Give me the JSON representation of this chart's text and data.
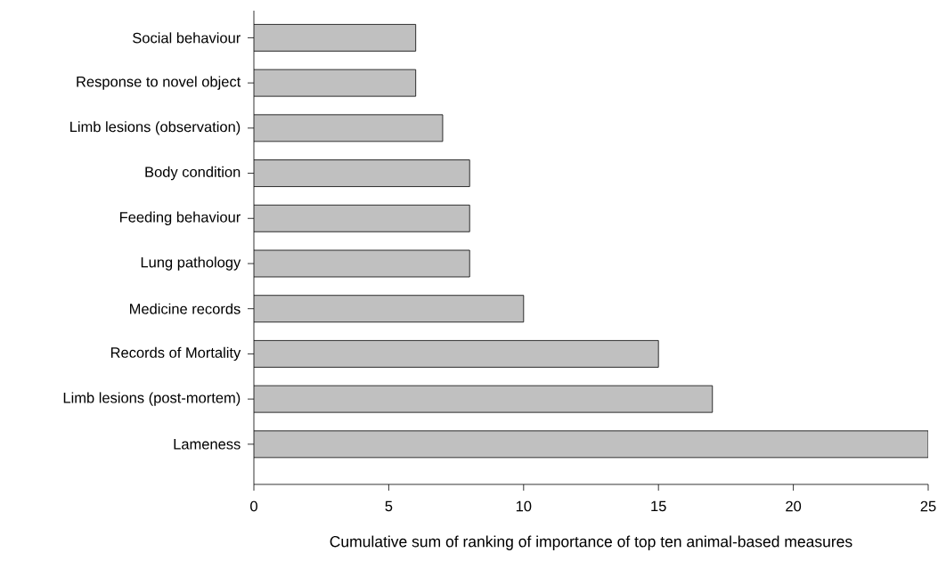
{
  "chart_data": {
    "type": "bar",
    "orientation": "horizontal",
    "xlabel": "Cumulative sum of ranking of importance of top ten animal-based measures",
    "categories": [
      "Social behaviour",
      "Response to novel object",
      "Limb lesions (observation)",
      "Body condition",
      "Feeding behaviour",
      "Lung pathology",
      "Medicine records",
      "Records of Mortality",
      "Limb lesions (post-mortem)",
      "Lameness"
    ],
    "values": [
      6,
      6,
      7,
      8,
      8,
      8,
      10,
      15,
      17,
      25
    ],
    "color": "#c0c0c0",
    "xlim": [
      0,
      25
    ],
    "xticks": [
      0,
      5,
      10,
      15,
      20,
      25
    ]
  }
}
